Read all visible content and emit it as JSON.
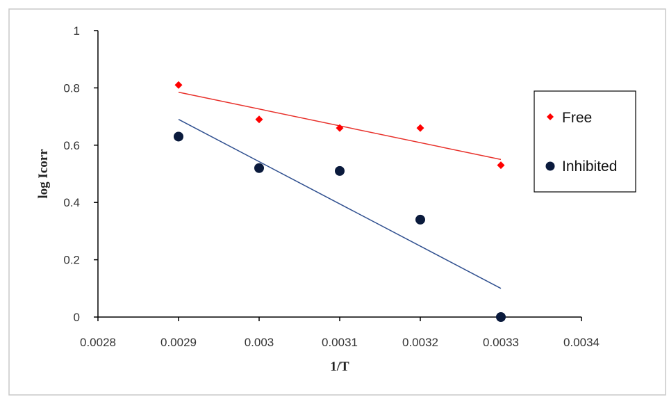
{
  "chart_data": {
    "type": "scatter",
    "title": "",
    "xlabel": "1/T",
    "ylabel": "log Icorr",
    "xlim": [
      0.0028,
      0.0034
    ],
    "ylim": [
      0,
      1
    ],
    "x_ticks": [
      "0.0028",
      "0.0029",
      "0.003",
      "0.0031",
      "0.0032",
      "0.0033",
      "0.0034"
    ],
    "y_ticks": [
      "0",
      "0.2",
      "0.4",
      "0.6",
      "0.8",
      "1"
    ],
    "grid": false,
    "legend_position": "right",
    "series": [
      {
        "name": "Free",
        "marker": "diamond",
        "marker_color": "#ff0000",
        "trendline_color": "#e8302a",
        "x": [
          0.0029,
          0.003,
          0.0031,
          0.0032,
          0.0033
        ],
        "y": [
          0.81,
          0.69,
          0.66,
          0.66,
          0.53
        ],
        "trendline": {
          "x": [
            0.0029,
            0.0033
          ],
          "y": [
            0.785,
            0.55
          ]
        }
      },
      {
        "name": "Inhibited",
        "marker": "circle",
        "marker_color": "#0a1a3c",
        "trendline_color": "#2f4f8f",
        "x": [
          0.0029,
          0.003,
          0.0031,
          0.0032,
          0.0033
        ],
        "y": [
          0.63,
          0.52,
          0.51,
          0.34,
          0.0
        ],
        "trendline": {
          "x": [
            0.0029,
            0.0033
          ],
          "y": [
            0.69,
            0.1
          ]
        }
      }
    ]
  }
}
